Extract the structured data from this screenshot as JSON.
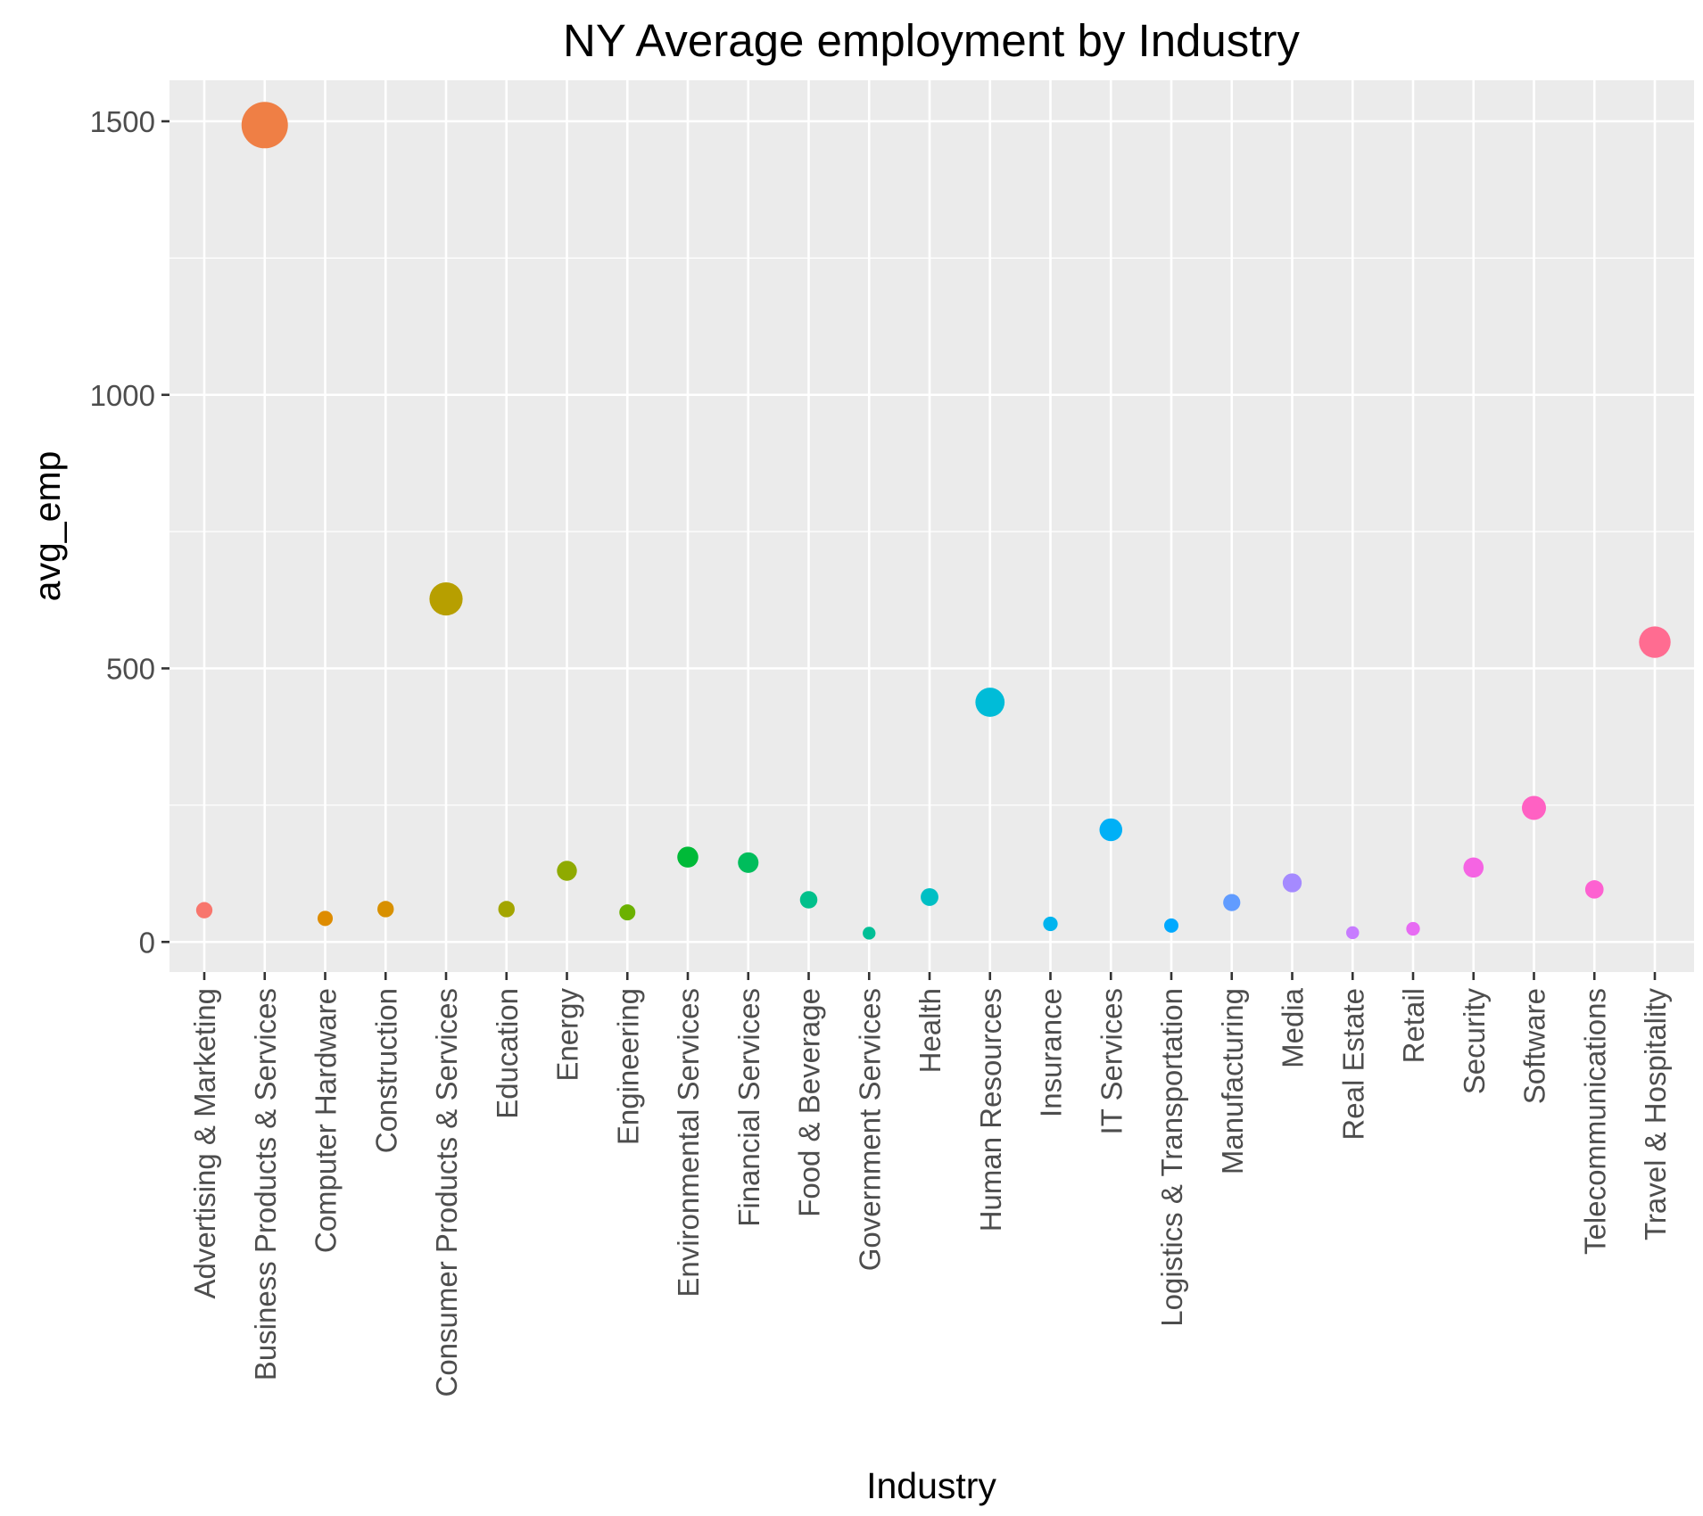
{
  "chart_data": {
    "type": "scatter",
    "title": "NY Average employment by Industry",
    "xlabel": "Industry",
    "ylabel": "avg_emp",
    "grid": true,
    "legend": "none",
    "ylim": [
      -55,
      1575
    ],
    "yticks": [
      0,
      500,
      1000,
      1500
    ],
    "yticklabels": [
      "0",
      "500",
      "1000",
      "1500"
    ],
    "categories": [
      "Advertising & Marketing",
      "Business Products & Services",
      "Computer Hardware",
      "Construction",
      "Consumer Products & Services",
      "Education",
      "Energy",
      "Engineering",
      "Environmental Services",
      "Financial Services",
      "Food & Beverage",
      "Government Services",
      "Health",
      "Human Resources",
      "Insurance",
      "IT Services",
      "Logistics & Transportation",
      "Manufacturing",
      "Media",
      "Real Estate",
      "Retail",
      "Security",
      "Software",
      "Telecommunications",
      "Travel & Hospitality"
    ],
    "values": [
      58,
      1493,
      43,
      60,
      627,
      60,
      130,
      54,
      155,
      145,
      77,
      16,
      82,
      438,
      33,
      205,
      30,
      72,
      108,
      17,
      24,
      136,
      245,
      96,
      548
    ],
    "colors": [
      "#F8766D",
      "#EF7F45",
      "#DE8C00",
      "#D89000",
      "#B79F00",
      "#A3A500",
      "#8FAA00",
      "#6BB100",
      "#00BA38",
      "#00BD5C",
      "#00C08B",
      "#00BF96",
      "#00BFC4",
      "#00BCD8",
      "#00B4EF",
      "#00B0F6",
      "#00A9FF",
      "#619CFF",
      "#A58AFF",
      "#C77CFF",
      "#E76BF3",
      "#F564E3",
      "#FF61C3",
      "#FD61D1",
      "#FF6C91"
    ],
    "panel_background": "#EBEBEB",
    "grid_color": "#FFFFFF"
  }
}
